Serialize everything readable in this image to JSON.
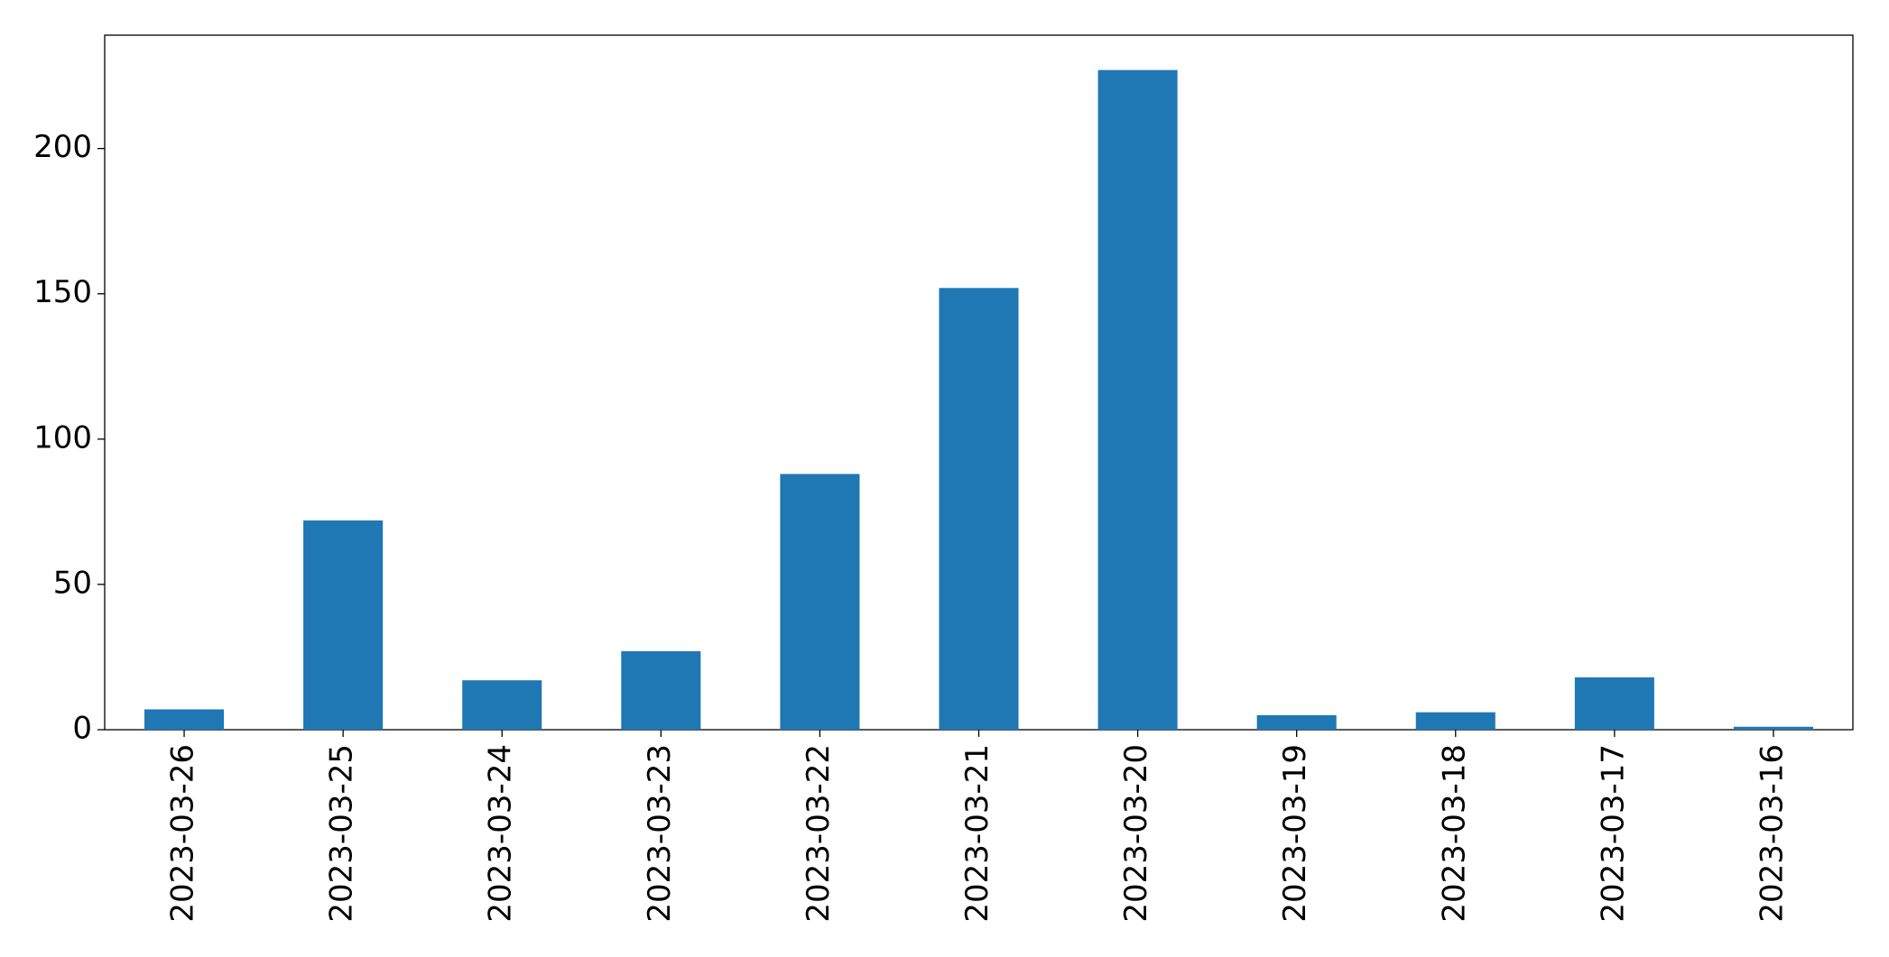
{
  "chart_data": {
    "type": "bar",
    "categories": [
      "2023-03-26",
      "2023-03-25",
      "2023-03-24",
      "2023-03-23",
      "2023-03-22",
      "2023-03-21",
      "2023-03-20",
      "2023-03-19",
      "2023-03-18",
      "2023-03-17",
      "2023-03-16"
    ],
    "values": [
      7,
      72,
      17,
      27,
      88,
      152,
      227,
      5,
      6,
      18,
      1
    ],
    "color": "#1f77b4",
    "ylim": [
      0,
      239
    ],
    "yticks": [
      0,
      50,
      100,
      150,
      200
    ],
    "grid": false
  }
}
